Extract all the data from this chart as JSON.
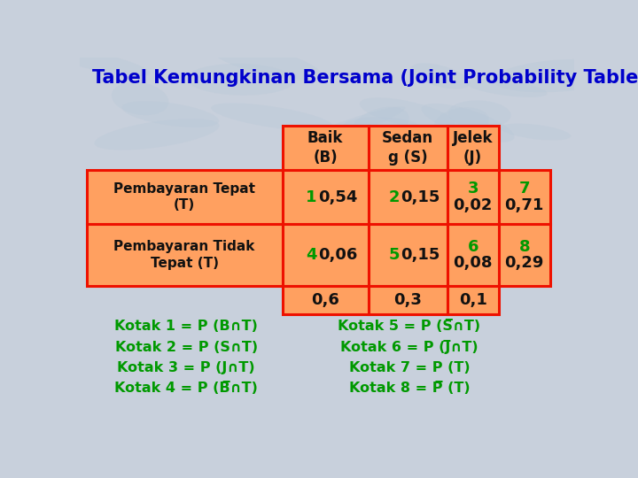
{
  "title": "Tabel Kemungkinan Bersama (Joint Probability Table)",
  "title_color": "#0000CC",
  "bg_color": "#C8D0DC",
  "cell_bg": "#FFA060",
  "border_color": "#EE1100",
  "green_color": "#009900",
  "black_color": "#111111",
  "col_headers": [
    "Baik\n(B)",
    "Sedan\ng (S)",
    "Jelek\n(J)"
  ],
  "row_labels": [
    "Pembayaran Tepat\n(T)",
    "Pembayaran Tidak\nTepat (T)"
  ],
  "row1_cells": [
    {
      "num": "1",
      "val": "0,54"
    },
    {
      "num": "2",
      "val": "0,15"
    },
    {
      "num": "3",
      "val": "0,02"
    },
    {
      "num": "7",
      "val": "0,71"
    }
  ],
  "row2_cells": [
    {
      "num": "4",
      "val": "0,06"
    },
    {
      "num": "5",
      "val": "0,15"
    },
    {
      "num": "6",
      "val": "0,08"
    },
    {
      "num": "8",
      "val": "0,29"
    }
  ],
  "totals": [
    "0,6",
    "0,3",
    "0,1"
  ],
  "kotak_left": [
    "Kotak 1 = P (B∩T)",
    "Kotak 2 = P (S∩T)",
    "Kotak 3 = P (J∩T)",
    "Kotak 4 = P (B̅∩T)"
  ],
  "kotak_right": [
    "Kotak 5 = P (S̅∩T)",
    "Kotak 6 = P (J̅∩T)",
    "Kotak 7 = P (T)",
    "Kotak 8 = P̅ (T)"
  ]
}
